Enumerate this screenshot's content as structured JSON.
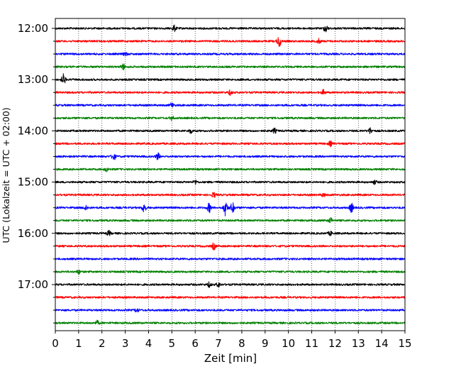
{
  "chart_data": {
    "type": "line",
    "title": "",
    "xlabel": "Zeit  [min]",
    "ylabel": "UTC (Lokalzeit = UTC + 02:00)",
    "xlim": [
      0,
      15
    ],
    "x_ticks": [
      "0",
      "1",
      "2",
      "3",
      "4",
      "5",
      "6",
      "7",
      "8",
      "9",
      "10",
      "11",
      "12",
      "13",
      "14",
      "15"
    ],
    "y_ticks": [
      "12:00",
      "13:00",
      "14:00",
      "15:00",
      "16:00",
      "17:00"
    ],
    "grid": "vertical dotted",
    "legend": "none",
    "trace_colors": [
      "#000000",
      "#ff0000",
      "#0000ff",
      "#008000"
    ],
    "traces": [
      {
        "start": "12:00",
        "color": "#000000",
        "events": [
          {
            "t": 5.1,
            "amp": 0.45
          },
          {
            "t": 11.6,
            "amp": 0.6
          }
        ]
      },
      {
        "start": "12:15",
        "color": "#ff0000",
        "events": [
          {
            "t": 9.6,
            "amp": 0.9
          },
          {
            "t": 11.3,
            "amp": 0.35
          }
        ]
      },
      {
        "start": "12:30",
        "color": "#0000ff",
        "events": [
          {
            "t": 3.0,
            "amp": 0.3
          }
        ]
      },
      {
        "start": "12:45",
        "color": "#008000",
        "events": [
          {
            "t": 2.9,
            "amp": 0.45
          }
        ]
      },
      {
        "start": "13:00",
        "color": "#000000",
        "events": [
          {
            "t": 0.35,
            "amp": 0.8
          }
        ]
      },
      {
        "start": "13:15",
        "color": "#ff0000",
        "events": [
          {
            "t": 7.5,
            "amp": 0.35
          },
          {
            "t": 11.5,
            "amp": 0.35
          }
        ]
      },
      {
        "start": "13:30",
        "color": "#0000ff",
        "events": [
          {
            "t": 5.0,
            "amp": 0.35
          }
        ]
      },
      {
        "start": "13:45",
        "color": "#008000",
        "events": [
          {
            "t": 5.0,
            "amp": 0.3
          }
        ]
      },
      {
        "start": "14:00",
        "color": "#000000",
        "events": [
          {
            "t": 5.8,
            "amp": 0.3
          },
          {
            "t": 9.4,
            "amp": 0.35
          },
          {
            "t": 13.5,
            "amp": 0.45
          }
        ]
      },
      {
        "start": "14:15",
        "color": "#ff0000",
        "events": [
          {
            "t": 11.8,
            "amp": 0.35
          }
        ]
      },
      {
        "start": "14:30",
        "color": "#0000ff",
        "events": [
          {
            "t": 2.5,
            "amp": 0.55
          },
          {
            "t": 4.4,
            "amp": 0.5
          }
        ]
      },
      {
        "start": "14:45",
        "color": "#008000",
        "events": [
          {
            "t": 2.2,
            "amp": 0.3
          }
        ]
      },
      {
        "start": "15:00",
        "color": "#000000",
        "events": [
          {
            "t": 6.0,
            "amp": 0.3
          },
          {
            "t": 13.7,
            "amp": 0.3
          }
        ]
      },
      {
        "start": "15:15",
        "color": "#ff0000",
        "events": [
          {
            "t": 6.8,
            "amp": 0.4
          },
          {
            "t": 11.5,
            "amp": 0.3
          }
        ]
      },
      {
        "start": "15:30",
        "color": "#0000ff",
        "events": [
          {
            "t": 1.3,
            "amp": 0.4
          },
          {
            "t": 3.8,
            "amp": 0.7
          },
          {
            "t": 6.6,
            "amp": 0.7
          },
          {
            "t": 7.3,
            "amp": 1.2
          },
          {
            "t": 7.6,
            "amp": 0.8
          },
          {
            "t": 12.7,
            "amp": 0.7
          }
        ]
      },
      {
        "start": "15:45",
        "color": "#008000",
        "events": [
          {
            "t": 11.8,
            "amp": 0.4
          }
        ]
      },
      {
        "start": "16:00",
        "color": "#000000",
        "events": [
          {
            "t": 2.3,
            "amp": 0.35
          },
          {
            "t": 11.8,
            "amp": 0.3
          }
        ]
      },
      {
        "start": "16:15",
        "color": "#ff0000",
        "events": [
          {
            "t": 6.8,
            "amp": 0.5
          }
        ]
      },
      {
        "start": "16:30",
        "color": "#0000ff",
        "events": []
      },
      {
        "start": "16:45",
        "color": "#008000",
        "events": [
          {
            "t": 1.0,
            "amp": 0.3
          }
        ]
      },
      {
        "start": "17:00",
        "color": "#000000",
        "events": [
          {
            "t": 6.6,
            "amp": 0.35
          },
          {
            "t": 7.0,
            "amp": 0.35
          }
        ]
      },
      {
        "start": "17:15",
        "color": "#ff0000",
        "events": []
      },
      {
        "start": "17:30",
        "color": "#0000ff",
        "events": [
          {
            "t": 3.5,
            "amp": 0.3
          }
        ]
      },
      {
        "start": "17:45",
        "color": "#008000",
        "events": [
          {
            "t": 1.8,
            "amp": 0.3
          }
        ]
      }
    ]
  }
}
